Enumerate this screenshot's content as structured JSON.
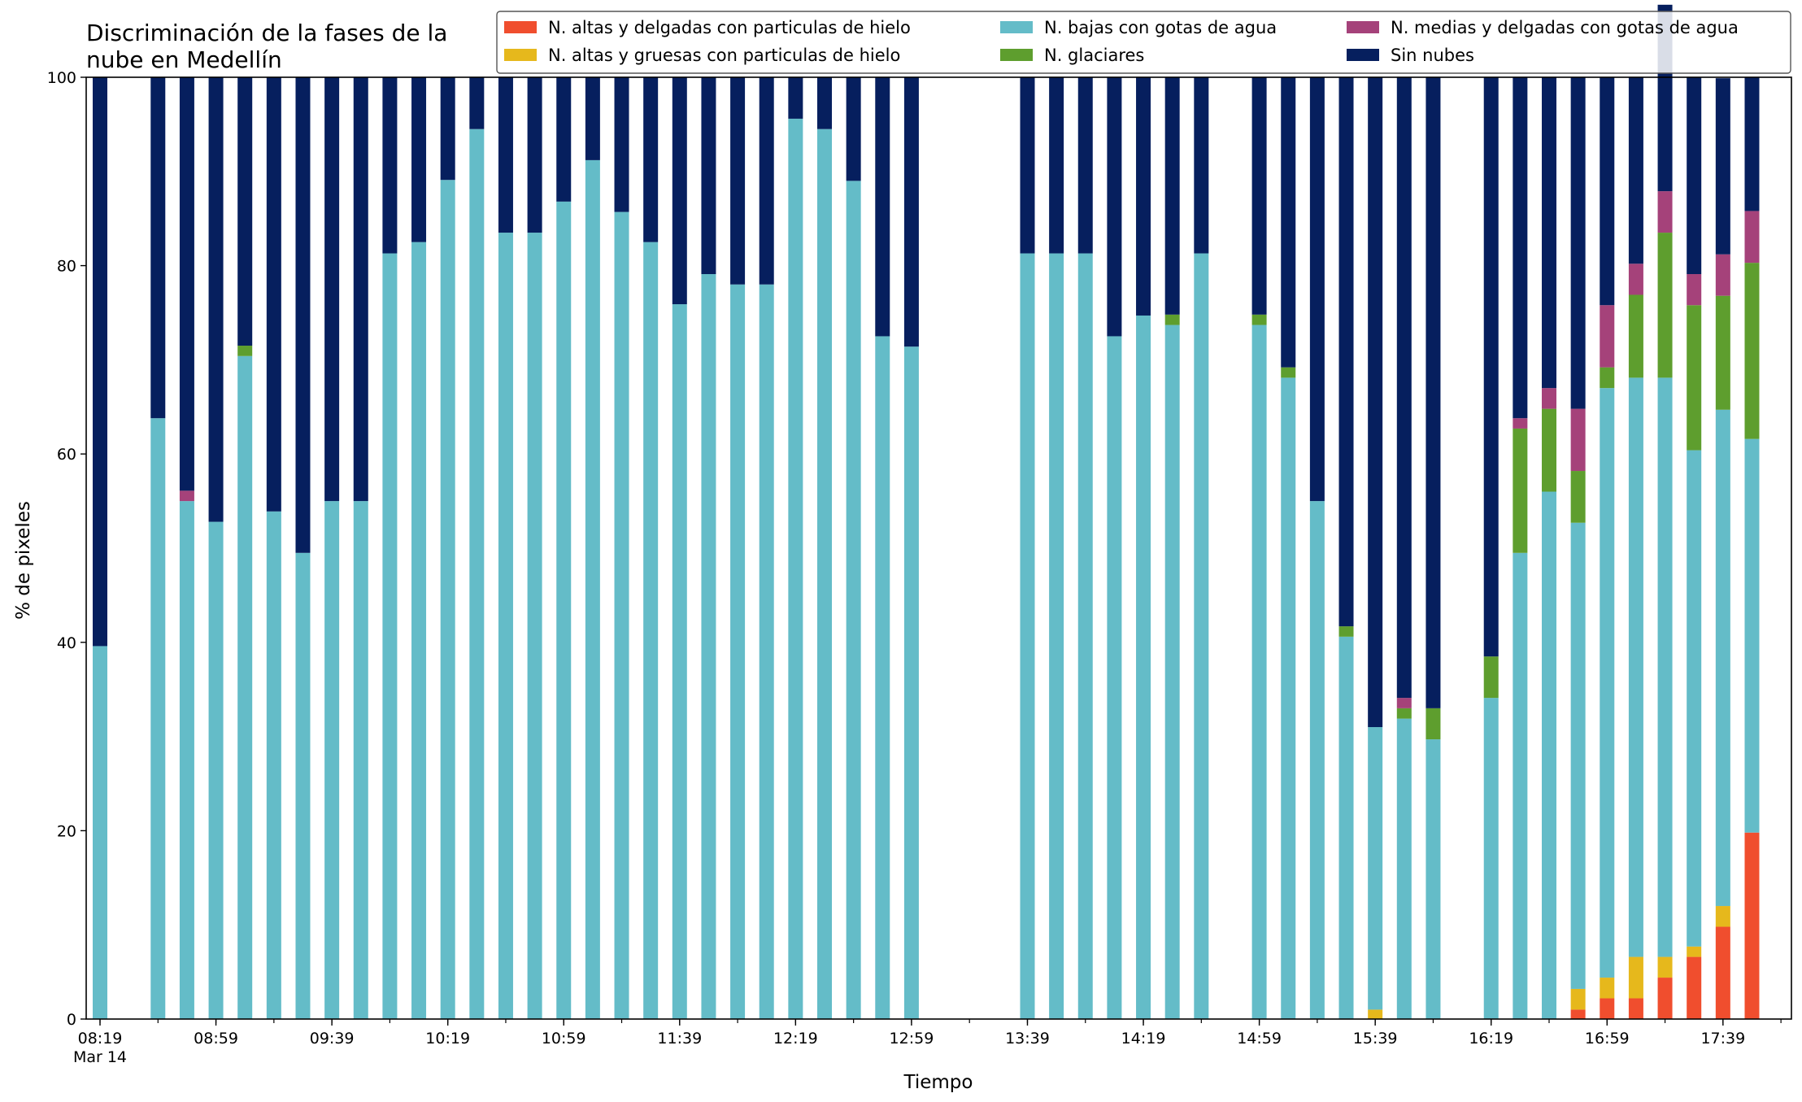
{
  "chart_data": {
    "type": "bar",
    "stacked": true,
    "title": "Discriminación de la fases de la\nnube en Medellín",
    "xlabel": "Tiempo",
    "ylabel": "% de pixeles",
    "ylim": [
      0,
      100
    ],
    "y_ticks": [
      0,
      20,
      40,
      60,
      80,
      100
    ],
    "grid": false,
    "legend_position": "top-right",
    "x_start": "08:19",
    "x_step_minutes": 10,
    "x_tick_labels": [
      {
        "slot": 0,
        "label": "08:19",
        "sublabel": "Mar 14"
      },
      {
        "slot": 4,
        "label": "08:59"
      },
      {
        "slot": 8,
        "label": "09:39"
      },
      {
        "slot": 12,
        "label": "10:19"
      },
      {
        "slot": 16,
        "label": "10:59"
      },
      {
        "slot": 20,
        "label": "11:39"
      },
      {
        "slot": 24,
        "label": "12:19"
      },
      {
        "slot": 28,
        "label": "12:59"
      },
      {
        "slot": 32,
        "label": "13:39"
      },
      {
        "slot": 36,
        "label": "14:19"
      },
      {
        "slot": 40,
        "label": "14:59"
      },
      {
        "slot": 44,
        "label": "15:39"
      },
      {
        "slot": 48,
        "label": "16:19"
      },
      {
        "slot": 52,
        "label": "16:59"
      },
      {
        "slot": 56,
        "label": "17:39"
      }
    ],
    "categories": [
      "08:19",
      "08:29",
      "08:39",
      "08:49",
      "08:59",
      "09:09",
      "09:19",
      "09:29",
      "09:39",
      "09:49",
      "09:59",
      "10:09",
      "10:19",
      "10:29",
      "10:39",
      "10:49",
      "10:59",
      "11:09",
      "11:19",
      "11:29",
      "11:39",
      "11:49",
      "11:59",
      "12:09",
      "12:19",
      "12:29",
      "12:39",
      "12:49",
      "12:59",
      "13:09",
      "13:19",
      "13:29",
      "13:39",
      "13:49",
      "13:59",
      "14:09",
      "14:19",
      "14:29",
      "14:39",
      "14:49",
      "14:59",
      "15:09",
      "15:19",
      "15:29",
      "15:39",
      "15:49",
      "15:59",
      "16:09",
      "16:19",
      "16:29",
      "16:39",
      "16:49",
      "16:59",
      "17:09",
      "17:19",
      "17:29",
      "17:39",
      "17:49"
    ],
    "series": [
      {
        "name": "N. altas y delgadas con particulas de hielo",
        "color": "#f04e2e",
        "values": [
          0,
          null,
          0,
          0,
          0,
          0,
          0,
          0,
          0,
          0,
          0,
          0,
          0,
          0,
          0,
          0,
          0,
          0,
          0,
          0,
          0,
          0,
          0,
          0,
          0,
          0,
          0,
          0,
          0,
          null,
          null,
          null,
          0,
          0,
          0,
          0,
          0,
          0,
          0,
          null,
          0,
          0,
          0,
          0,
          0,
          0,
          0,
          null,
          0,
          0,
          0,
          1,
          2.2,
          2.2,
          4.4,
          6.6,
          9.8,
          19.8
        ]
      },
      {
        "name": "N. altas y gruesas con particulas de hielo",
        "color": "#e6b81c",
        "values": [
          0,
          null,
          0,
          0,
          0,
          0,
          0,
          0,
          0,
          0,
          0,
          0,
          0,
          0,
          0,
          0,
          0,
          0,
          0,
          0,
          0,
          0,
          0,
          0,
          0,
          0,
          0,
          0,
          0,
          null,
          null,
          null,
          0,
          0,
          0,
          0,
          0,
          0,
          0,
          null,
          0,
          0,
          0,
          0,
          1,
          0,
          0,
          null,
          0,
          0,
          0,
          2.2,
          2.2,
          4.4,
          2.2,
          1.1,
          2.2,
          0
        ]
      },
      {
        "name": "N. bajas con gotas de agua",
        "color": "#64bcc8",
        "values": [
          39.6,
          null,
          63.8,
          55,
          52.8,
          70.4,
          53.9,
          49.5,
          55,
          55,
          81.3,
          82.5,
          89.1,
          94.5,
          83.5,
          83.5,
          86.8,
          91.2,
          85.7,
          82.5,
          75.9,
          79.1,
          78,
          78,
          95.6,
          94.5,
          89,
          72.5,
          71.4,
          null,
          null,
          null,
          81.3,
          81.3,
          81.3,
          72.5,
          74.7,
          73.7,
          81.3,
          null,
          73.7,
          68.1,
          55,
          40.6,
          30,
          31.9,
          29.7,
          null,
          34.1,
          49.5,
          56,
          49.5,
          62.6,
          61.5,
          61.5,
          52.7,
          52.7,
          41.8
        ]
      },
      {
        "name": "N. glaciares",
        "color": "#5e9e2e",
        "values": [
          0,
          null,
          0,
          0,
          0,
          1.1,
          0,
          0,
          0,
          0,
          0,
          0,
          0,
          0,
          0,
          0,
          0,
          0,
          0,
          0,
          0,
          0,
          0,
          0,
          0,
          0,
          0,
          0,
          0,
          null,
          null,
          null,
          0,
          0,
          0,
          0,
          0,
          1.1,
          0,
          null,
          1.1,
          1.1,
          0,
          1.1,
          0,
          1.1,
          3.3,
          null,
          4.4,
          13.2,
          8.8,
          5.5,
          2.2,
          8.8,
          15.4,
          15.4,
          12.1,
          18.7
        ]
      },
      {
        "name": "N. medias y delgadas con gotas de agua",
        "color": "#a5427a",
        "values": [
          0,
          null,
          0,
          1.1,
          0,
          0,
          0,
          0,
          0,
          0,
          0,
          0,
          0,
          0,
          0,
          0,
          0,
          0,
          0,
          0,
          0,
          0,
          0,
          0,
          0,
          0,
          0,
          0,
          0,
          null,
          null,
          null,
          0,
          0,
          0,
          0,
          0,
          0,
          0,
          null,
          0,
          0,
          0,
          0,
          0,
          1.1,
          0,
          null,
          0,
          1.1,
          2.2,
          6.6,
          6.6,
          3.3,
          4.4,
          3.3,
          4.4,
          5.5
        ]
      },
      {
        "name": "Sin nubes",
        "color": "#061f5e",
        "values": [
          60.4,
          null,
          36.2,
          43.9,
          47.2,
          28.5,
          46.1,
          50.5,
          45,
          45,
          18.7,
          17.5,
          10.9,
          5.5,
          16.5,
          16.5,
          13.2,
          8.8,
          14.3,
          17.5,
          24.1,
          20.9,
          22,
          22,
          4.4,
          5.5,
          11,
          27.5,
          28.6,
          null,
          null,
          null,
          18.7,
          18.7,
          18.7,
          27.5,
          25.3,
          25.2,
          18.7,
          null,
          25.2,
          30.8,
          45,
          58.3,
          69,
          65.9,
          67,
          null,
          61.5,
          36.2,
          33,
          35.2,
          24.2,
          19.8,
          19.8,
          20.9,
          18.7,
          14.2
        ]
      }
    ]
  }
}
